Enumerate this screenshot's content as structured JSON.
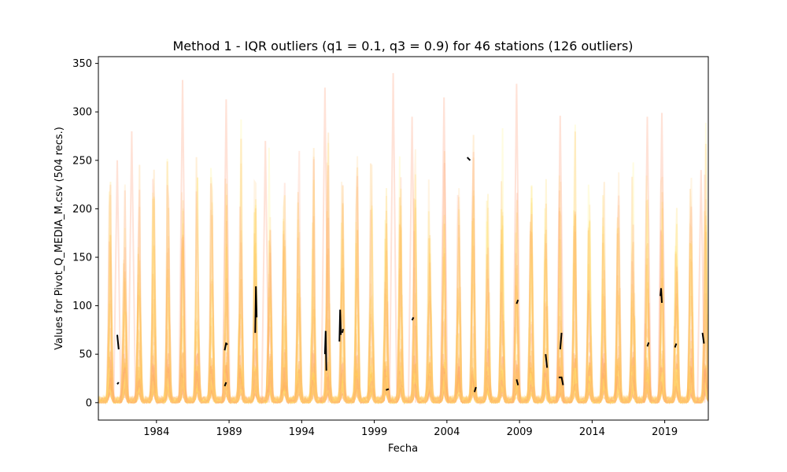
{
  "chart_data": {
    "type": "line",
    "title": "Method 1 - IQR outliers (q1 = 0.1, q3 = 0.9) for 46 stations (126 outliers)",
    "xlabel": "Fecha",
    "ylabel": "Values for Pivot_Q_MEDIA_M.csv (504 recs.)",
    "xlim": [
      1980.0,
      2022.0
    ],
    "ylim": [
      -18,
      357
    ],
    "x_ticks": [
      1984,
      1989,
      1994,
      1999,
      2004,
      2009,
      2014,
      2019
    ],
    "y_ticks": [
      0,
      50,
      100,
      150,
      200,
      250,
      300,
      350
    ],
    "grid": false,
    "series_count": 46,
    "series_colors": [
      "#ffa07a",
      "#ffd54f",
      "#ffb74d",
      "#ffcc80",
      "#fff176"
    ],
    "outlier_color": "#000000",
    "peaks": [
      {
        "x": 1981.3,
        "y": 250
      },
      {
        "x": 1982.3,
        "y": 280
      },
      {
        "x": 1985.8,
        "y": 333
      },
      {
        "x": 1988.8,
        "y": 313
      },
      {
        "x": 1991.5,
        "y": 270
      },
      {
        "x": 1995.6,
        "y": 325
      },
      {
        "x": 2000.3,
        "y": 340
      },
      {
        "x": 2001.6,
        "y": 295
      },
      {
        "x": 2003.8,
        "y": 315
      },
      {
        "x": 2008.8,
        "y": 329
      },
      {
        "x": 2011.8,
        "y": 296
      },
      {
        "x": 2017.8,
        "y": 295
      },
      {
        "x": 2018.8,
        "y": 299
      },
      {
        "x": 2021.5,
        "y": 240
      }
    ],
    "outliers": [
      {
        "x": [
          1981.3,
          1981.4
        ],
        "y": [
          70,
          55
        ]
      },
      {
        "x": [
          1981.3,
          1981.4
        ],
        "y": [
          19,
          21
        ]
      },
      {
        "x": [
          1988.7,
          1988.8
        ],
        "y": [
          54,
          62
        ]
      },
      {
        "x": [
          1988.8,
          1988.9
        ],
        "y": [
          61,
          60
        ]
      },
      {
        "x": [
          1988.7,
          1988.8
        ],
        "y": [
          17,
          21
        ]
      },
      {
        "x": [
          1990.8,
          1990.85,
          1990.9
        ],
        "y": [
          72,
          120,
          88
        ]
      },
      {
        "x": [
          1995.6,
          1995.65,
          1995.7
        ],
        "y": [
          50,
          74,
          33
        ]
      },
      {
        "x": [
          1996.6,
          1996.65,
          1996.7
        ],
        "y": [
          63,
          96,
          70
        ]
      },
      {
        "x": [
          1996.8,
          1996.85
        ],
        "y": [
          72,
          76
        ]
      },
      {
        "x": [
          1999.8,
          2000.0
        ],
        "y": [
          13,
          14
        ]
      },
      {
        "x": [
          2001.6,
          2001.7
        ],
        "y": [
          85,
          88
        ]
      },
      {
        "x": [
          2005.4,
          2005.6
        ],
        "y": [
          253,
          250
        ]
      },
      {
        "x": [
          2005.9,
          2006.0
        ],
        "y": [
          11,
          16
        ]
      },
      {
        "x": [
          2008.8,
          2008.9
        ],
        "y": [
          102,
          106
        ]
      },
      {
        "x": [
          2008.8,
          2008.9
        ],
        "y": [
          24,
          18
        ]
      },
      {
        "x": [
          2010.8,
          2010.9
        ],
        "y": [
          50,
          36
        ]
      },
      {
        "x": [
          2011.8,
          2011.9
        ],
        "y": [
          55,
          72
        ]
      },
      {
        "x": [
          2011.7,
          2011.9,
          2012.0
        ],
        "y": [
          26,
          26,
          18
        ]
      },
      {
        "x": [
          2017.8,
          2017.9
        ],
        "y": [
          58,
          62
        ]
      },
      {
        "x": [
          2018.7,
          2018.75,
          2018.8
        ],
        "y": [
          110,
          118,
          103
        ]
      },
      {
        "x": [
          2019.7,
          2019.8
        ],
        "y": [
          57,
          61
        ]
      },
      {
        "x": [
          2021.6,
          2021.7
        ],
        "y": [
          72,
          61
        ]
      }
    ]
  }
}
